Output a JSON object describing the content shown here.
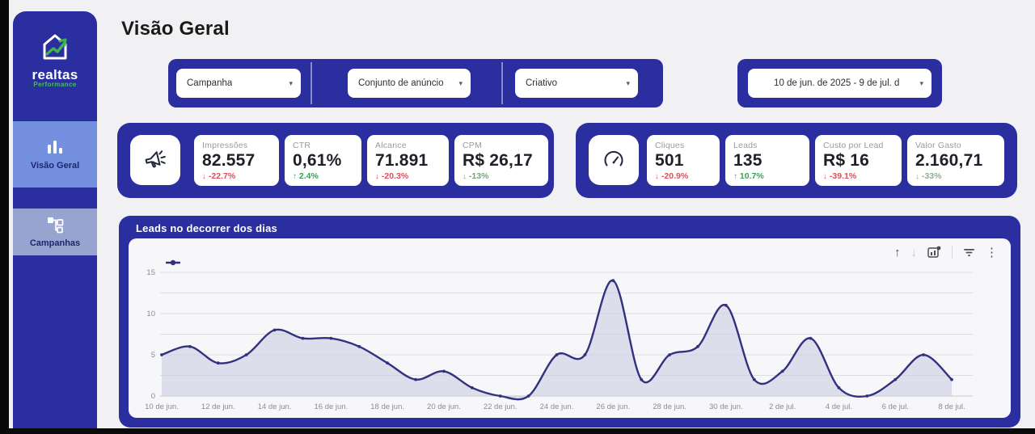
{
  "page": {
    "title": "Visão Geral"
  },
  "sidebar": {
    "logo": {
      "title": "realtas",
      "subtitle": "Performance"
    },
    "items": [
      {
        "label": "Visão Geral",
        "icon": "bar-chart-icon",
        "active": true
      },
      {
        "label": "Campanhas",
        "icon": "sitemap-icon",
        "active": false
      }
    ]
  },
  "filters": {
    "campaign": {
      "label": "Campanha"
    },
    "adset": {
      "label": "Conjunto de anúncio"
    },
    "creative": {
      "label": "Criativo"
    },
    "date_range": {
      "label": "10 de jun. de 2025 - 9 de jul. d"
    }
  },
  "kpi_groups": [
    {
      "icon": "megaphone-icon",
      "cards": [
        {
          "label": "Impressões",
          "value": "82.557",
          "delta": "-22.7%",
          "direction": "down",
          "trend_color": "#d94f5e"
        },
        {
          "label": "CTR",
          "value": "0,61%",
          "delta": "2.4%",
          "direction": "up",
          "trend_color": "#3f9e58"
        },
        {
          "label": "Alcance",
          "value": "71.891",
          "delta": "-20.3%",
          "direction": "down",
          "trend_color": "#d94f5e"
        },
        {
          "label": "CPM",
          "value": "R$ 26,17",
          "delta": "-13%",
          "direction": "down",
          "trend_color": "#78a37c"
        }
      ]
    },
    {
      "icon": "gauge-icon",
      "cards": [
        {
          "label": "Cliques",
          "value": "501",
          "delta": "-20.9%",
          "direction": "down",
          "trend_color": "#d94f5e"
        },
        {
          "label": "Leads",
          "value": "135",
          "delta": "10.7%",
          "direction": "up",
          "trend_color": "#3f9e58"
        },
        {
          "label": "Custo por Lead",
          "value": "R$ 16",
          "delta": "-39.1%",
          "direction": "down",
          "trend_color": "#d94f5e"
        },
        {
          "label": "Valor Gasto",
          "value": "2.160,71",
          "delta": "-33%",
          "direction": "down",
          "trend_color": "#8fae92"
        }
      ]
    }
  ],
  "chart": {
    "title": "Leads no decorrer dos dias",
    "toolbar_icons": [
      "move-up-icon",
      "move-down-icon",
      "chart-settings-icon",
      "filter-icon",
      "more-options-icon"
    ]
  },
  "chart_data": {
    "type": "area",
    "title": "Leads no decorrer dos dias",
    "series_name": "Leads",
    "x": [
      "10 de jun.",
      "11 de jun.",
      "12 de jun.",
      "13 de jun.",
      "14 de jun.",
      "15 de jun.",
      "16 de jun.",
      "17 de jun.",
      "18 de jun.",
      "19 de jun.",
      "20 de jun.",
      "21 de jun.",
      "22 de jun.",
      "23 de jun.",
      "24 de jun.",
      "25 de jun.",
      "26 de jun.",
      "27 de jun.",
      "28 de jun.",
      "29 de jun.",
      "30 de jun.",
      "1 de jul.",
      "2 de jul.",
      "3 de jul.",
      "4 de jul.",
      "5 de jul.",
      "6 de jul.",
      "7 de jul.",
      "8 de jul."
    ],
    "values": [
      5,
      6,
      4,
      5,
      8,
      7,
      7,
      6,
      4,
      2,
      3,
      1,
      0,
      0,
      5,
      5,
      14,
      2,
      5,
      6,
      11,
      2,
      3,
      7,
      1,
      0,
      2,
      5,
      2
    ],
    "tick_labels": [
      "10 de jun.",
      "12 de jun.",
      "14 de jun.",
      "16 de jun.",
      "18 de jun.",
      "20 de jun.",
      "22 de jun.",
      "24 de jun.",
      "26 de jun.",
      "28 de jun.",
      "30 de jun.",
      "2 de jul.",
      "4 de jul.",
      "6 de jul.",
      "8 de jul."
    ],
    "ylim": [
      0,
      15
    ],
    "yticks": [
      0,
      5,
      10,
      15
    ],
    "gridline_step": 2.5,
    "grid": true,
    "legend_position": "top-left",
    "line_color": "#31317f",
    "area_color": "#c9cbe0"
  }
}
